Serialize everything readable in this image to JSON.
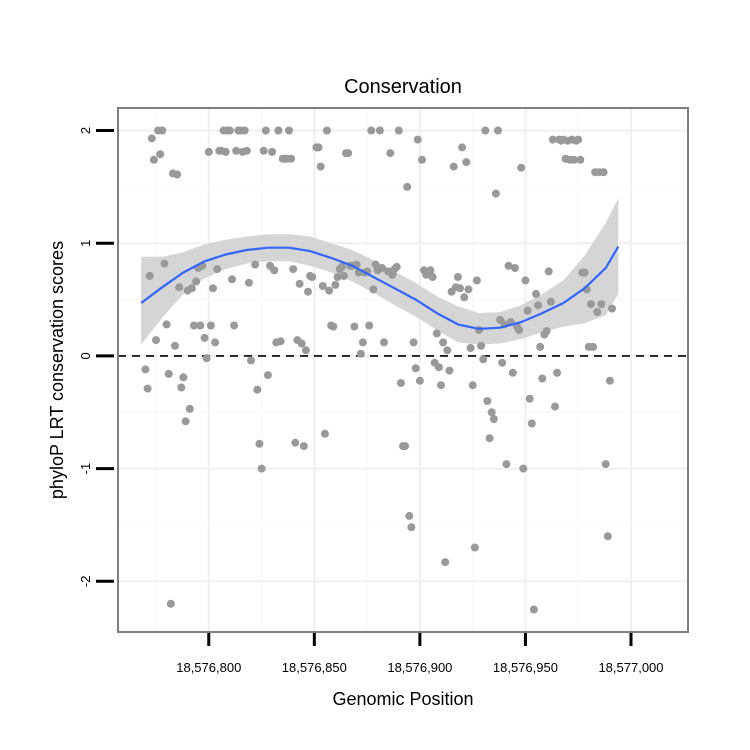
{
  "chart_data": {
    "type": "scatter",
    "title": "Conservation",
    "xlabel": "Genomic Position",
    "ylabel": "phyloP LRT conservation scores",
    "xlim": [
      18576757,
      18577027
    ],
    "ylim": [
      -2.45,
      2.2
    ],
    "x_ticks": [
      18576800,
      18576850,
      18576900,
      18576950,
      18577000
    ],
    "x_tick_labels": [
      "18,576,800",
      "18,576,850",
      "18,576,900",
      "18,576,950",
      "18,577,000"
    ],
    "y_ticks": [
      -2,
      -1,
      0,
      1,
      2
    ],
    "y_tick_labels": [
      "-2",
      "-1",
      "0",
      "1",
      "2"
    ],
    "grid": true,
    "reference_line": {
      "y": 0,
      "style": "dashed"
    },
    "colors": {
      "points": "#999999",
      "trend": "#3366ff",
      "band": "#d5d5d5"
    },
    "series": [
      {
        "type": "scatter",
        "points": [
          [
            18576770,
            -0.12
          ],
          [
            18576771,
            -0.29
          ],
          [
            18576772,
            0.71
          ],
          [
            18576773,
            1.93
          ],
          [
            18576774,
            1.74
          ],
          [
            18576775,
            0.14
          ],
          [
            18576776,
            2.0
          ],
          [
            18576777,
            1.79
          ],
          [
            18576778,
            2.0
          ],
          [
            18576779,
            0.82
          ],
          [
            18576780,
            0.28
          ],
          [
            18576781,
            -0.16
          ],
          [
            18576782,
            -2.2
          ],
          [
            18576783,
            1.62
          ],
          [
            18576784,
            0.09
          ],
          [
            18576785,
            1.61
          ],
          [
            18576786,
            0.61
          ],
          [
            18576787,
            -0.28
          ],
          [
            18576788,
            -0.19
          ],
          [
            18576789,
            -0.58
          ],
          [
            18576790,
            0.58
          ],
          [
            18576791,
            -0.47
          ],
          [
            18576792,
            0.6
          ],
          [
            18576793,
            0.27
          ],
          [
            18576794,
            0.66
          ],
          [
            18576795,
            0.78
          ],
          [
            18576796,
            0.27
          ],
          [
            18576797,
            0.8
          ],
          [
            18576798,
            0.16
          ],
          [
            18576799,
            -0.02
          ],
          [
            18576800,
            1.81
          ],
          [
            18576801,
            0.27
          ],
          [
            18576802,
            0.6
          ],
          [
            18576803,
            0.12
          ],
          [
            18576804,
            0.77
          ],
          [
            18576805,
            1.82
          ],
          [
            18576806,
            1.82
          ],
          [
            18576807,
            2.0
          ],
          [
            18576808,
            1.81
          ],
          [
            18576809,
            2.0
          ],
          [
            18576810,
            2.0
          ],
          [
            18576811,
            0.68
          ],
          [
            18576812,
            0.27
          ],
          [
            18576813,
            1.82
          ],
          [
            18576814,
            2.0
          ],
          [
            18576815,
            2.0
          ],
          [
            18576816,
            1.81
          ],
          [
            18576817,
            2.0
          ],
          [
            18576818,
            1.82
          ],
          [
            18576819,
            0.65
          ],
          [
            18576820,
            -0.04
          ],
          [
            18576822,
            0.81
          ],
          [
            18576823,
            -0.3
          ],
          [
            18576824,
            -0.78
          ],
          [
            18576825,
            -1.0
          ],
          [
            18576826,
            1.82
          ],
          [
            18576827,
            2.0
          ],
          [
            18576828,
            -0.17
          ],
          [
            18576829,
            0.8
          ],
          [
            18576830,
            1.81
          ],
          [
            18576831,
            0.76
          ],
          [
            18576832,
            0.12
          ],
          [
            18576833,
            2.0
          ],
          [
            18576834,
            0.13
          ],
          [
            18576835,
            1.75
          ],
          [
            18576836,
            1.75
          ],
          [
            18576837,
            1.75
          ],
          [
            18576838,
            2.0
          ],
          [
            18576839,
            1.75
          ],
          [
            18576840,
            0.77
          ],
          [
            18576841,
            -0.77
          ],
          [
            18576842,
            0.14
          ],
          [
            18576843,
            0.64
          ],
          [
            18576844,
            0.11
          ],
          [
            18576845,
            -0.8
          ],
          [
            18576846,
            0.05
          ],
          [
            18576847,
            0.57
          ],
          [
            18576848,
            0.71
          ],
          [
            18576849,
            0.7
          ],
          [
            18576851,
            1.85
          ],
          [
            18576852,
            1.85
          ],
          [
            18576853,
            1.68
          ],
          [
            18576854,
            0.62
          ],
          [
            18576855,
            -0.69
          ],
          [
            18576856,
            2.0
          ],
          [
            18576857,
            0.58
          ],
          [
            18576858,
            0.27
          ],
          [
            18576859,
            0.26
          ],
          [
            18576860,
            0.63
          ],
          [
            18576861,
            0.7
          ],
          [
            18576862,
            0.77
          ],
          [
            18576863,
            0.79
          ],
          [
            18576864,
            0.71
          ],
          [
            18576865,
            1.8
          ],
          [
            18576866,
            1.8
          ],
          [
            18576867,
            0.8
          ],
          [
            18576868,
            0.8
          ],
          [
            18576869,
            0.26
          ],
          [
            18576870,
            0.81
          ],
          [
            18576871,
            0.74
          ],
          [
            18576872,
            0.02
          ],
          [
            18576873,
            0.12
          ],
          [
            18576874,
            0.74
          ],
          [
            18576875,
            0.75
          ],
          [
            18576876,
            0.27
          ],
          [
            18576877,
            2.0
          ],
          [
            18576878,
            0.59
          ],
          [
            18576879,
            0.81
          ],
          [
            18576880,
            0.76
          ],
          [
            18576881,
            2.0
          ],
          [
            18576882,
            0.78
          ],
          [
            18576883,
            0.12
          ],
          [
            18576885,
            0.75
          ],
          [
            18576886,
            1.8
          ],
          [
            18576887,
            0.72
          ],
          [
            18576888,
            0.77
          ],
          [
            18576889,
            0.79
          ],
          [
            18576890,
            2.0
          ],
          [
            18576891,
            -0.24
          ],
          [
            18576892,
            -0.8
          ],
          [
            18576893,
            -0.8
          ],
          [
            18576894,
            1.5
          ],
          [
            18576895,
            -1.42
          ],
          [
            18576896,
            -1.52
          ],
          [
            18576897,
            0.12
          ],
          [
            18576898,
            -0.11
          ],
          [
            18576899,
            1.92
          ],
          [
            18576900,
            -0.22
          ],
          [
            18576901,
            1.74
          ],
          [
            18576902,
            0.76
          ],
          [
            18576903,
            0.72
          ],
          [
            18576904,
            0.74
          ],
          [
            18576905,
            0.76
          ],
          [
            18576906,
            0.7
          ],
          [
            18576907,
            -0.06
          ],
          [
            18576908,
            0.2
          ],
          [
            18576909,
            -0.1
          ],
          [
            18576910,
            -0.26
          ],
          [
            18576911,
            0.12
          ],
          [
            18576912,
            -1.83
          ],
          [
            18576913,
            0.05
          ],
          [
            18576914,
            -0.13
          ],
          [
            18576915,
            0.57
          ],
          [
            18576916,
            1.68
          ],
          [
            18576917,
            0.61
          ],
          [
            18576918,
            0.7
          ],
          [
            18576919,
            0.6
          ],
          [
            18576920,
            1.85
          ],
          [
            18576921,
            0.52
          ],
          [
            18576922,
            1.72
          ],
          [
            18576923,
            0.59
          ],
          [
            18576924,
            0.07
          ],
          [
            18576925,
            -0.26
          ],
          [
            18576926,
            -1.7
          ],
          [
            18576927,
            0.67
          ],
          [
            18576928,
            0.23
          ],
          [
            18576929,
            0.09
          ],
          [
            18576930,
            -0.03
          ],
          [
            18576931,
            2.0
          ],
          [
            18576932,
            -0.4
          ],
          [
            18576933,
            -0.73
          ],
          [
            18576934,
            -0.5
          ],
          [
            18576935,
            -0.56
          ],
          [
            18576936,
            1.44
          ],
          [
            18576937,
            2.0
          ],
          [
            18576938,
            0.32
          ],
          [
            18576939,
            -0.06
          ],
          [
            18576940,
            0.28
          ],
          [
            18576941,
            -0.96
          ],
          [
            18576942,
            0.8
          ],
          [
            18576943,
            0.3
          ],
          [
            18576944,
            -0.15
          ],
          [
            18576945,
            0.78
          ],
          [
            18576946,
            0.26
          ],
          [
            18576947,
            0.23
          ],
          [
            18576948,
            1.67
          ],
          [
            18576949,
            -1.0
          ],
          [
            18576950,
            0.67
          ],
          [
            18576951,
            0.4
          ],
          [
            18576952,
            -0.38
          ],
          [
            18576953,
            -0.6
          ],
          [
            18576954,
            -2.25
          ],
          [
            18576955,
            0.55
          ],
          [
            18576956,
            0.45
          ],
          [
            18576957,
            0.08
          ],
          [
            18576958,
            -0.2
          ],
          [
            18576959,
            0.19
          ],
          [
            18576960,
            0.22
          ],
          [
            18576961,
            0.75
          ],
          [
            18576962,
            0.48
          ],
          [
            18576963,
            1.92
          ],
          [
            18576964,
            -0.45
          ],
          [
            18576965,
            -0.15
          ],
          [
            18576966,
            1.92
          ],
          [
            18576967,
            1.91
          ],
          [
            18576968,
            1.92
          ],
          [
            18576969,
            1.75
          ],
          [
            18576970,
            1.91
          ],
          [
            18576971,
            1.74
          ],
          [
            18576972,
            1.92
          ],
          [
            18576973,
            1.74
          ],
          [
            18576974,
            1.91
          ],
          [
            18576975,
            1.92
          ],
          [
            18576976,
            1.74
          ],
          [
            18576977,
            0.74
          ],
          [
            18576978,
            0.74
          ],
          [
            18576979,
            0.59
          ],
          [
            18576980,
            0.08
          ],
          [
            18576981,
            0.46
          ],
          [
            18576982,
            0.08
          ],
          [
            18576983,
            1.63
          ],
          [
            18576984,
            0.39
          ],
          [
            18576985,
            1.63
          ],
          [
            18576986,
            0.46
          ],
          [
            18576987,
            1.63
          ],
          [
            18576988,
            -0.96
          ],
          [
            18576989,
            -1.6
          ],
          [
            18576990,
            -0.22
          ],
          [
            18576991,
            0.42
          ]
        ]
      },
      {
        "type": "smooth",
        "x": [
          18576768,
          18576778,
          18576788,
          18576798,
          18576808,
          18576818,
          18576828,
          18576838,
          18576848,
          18576858,
          18576868,
          18576878,
          18576888,
          18576898,
          18576908,
          18576918,
          18576928,
          18576938,
          18576948,
          18576958,
          18576968,
          18576978,
          18576988,
          18576994
        ],
        "y": [
          0.47,
          0.61,
          0.74,
          0.84,
          0.9,
          0.94,
          0.96,
          0.96,
          0.93,
          0.87,
          0.8,
          0.7,
          0.6,
          0.5,
          0.38,
          0.28,
          0.24,
          0.25,
          0.3,
          0.38,
          0.47,
          0.6,
          0.78,
          0.97
        ],
        "ci_low": [
          0.1,
          0.34,
          0.55,
          0.69,
          0.77,
          0.82,
          0.84,
          0.84,
          0.8,
          0.74,
          0.66,
          0.56,
          0.45,
          0.35,
          0.23,
          0.12,
          0.1,
          0.11,
          0.15,
          0.21,
          0.26,
          0.29,
          0.36,
          0.55
        ],
        "ci_high": [
          0.88,
          0.88,
          0.92,
          0.99,
          1.03,
          1.06,
          1.08,
          1.08,
          1.06,
          1.0,
          0.94,
          0.85,
          0.75,
          0.65,
          0.53,
          0.44,
          0.38,
          0.39,
          0.45,
          0.55,
          0.67,
          0.89,
          1.18,
          1.4
        ]
      }
    ]
  }
}
